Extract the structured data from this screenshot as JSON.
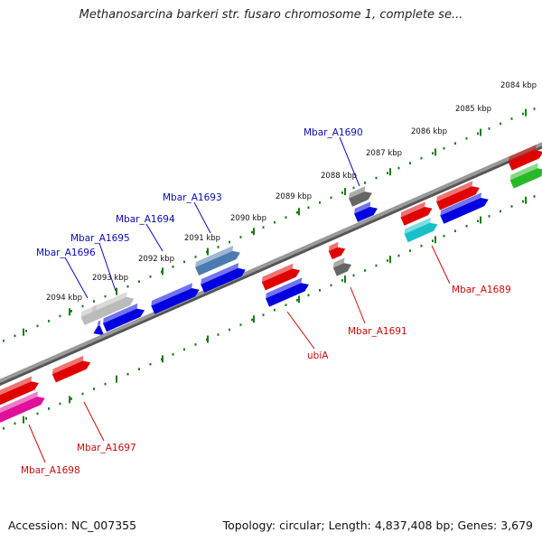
{
  "title": "Methanosarcina barkeri str. fusaro chromosome 1, complete se...",
  "footer": {
    "accession": "Accession: NC_007355",
    "topology": "Topology: circular; Length: 4,837,408 bp; Genes: 3,679"
  },
  "kbp_labels": [
    "2084 kbp",
    "2085 kbp",
    "2086 kbp",
    "2087 kbp",
    "2088 kbp",
    "2089 kbp",
    "2090 kbp",
    "2091 kbp",
    "2092 kbp",
    "2093 kbp",
    "2094 kbp"
  ],
  "gene_labels": {
    "upper": [
      "Mbar_A1690",
      "Mbar_A1693",
      "Mbar_A1694",
      "Mbar_A1695",
      "Mbar_A1696"
    ],
    "lower": [
      "Mbar_A1689",
      "Mbar_A1691",
      "ubiA",
      "Mbar_A1697",
      "Mbar_A1698"
    ]
  },
  "colors": {
    "red": "#e00000",
    "blue": "#0000e0",
    "grey": "#666666",
    "lightgrey": "#bbbbbb",
    "steelblue": "#4a7ab0",
    "cyan": "#18c0c8",
    "green": "#28b828",
    "magenta": "#e0109a",
    "backbone": "#888888",
    "ticks": "#1a7a1a"
  }
}
